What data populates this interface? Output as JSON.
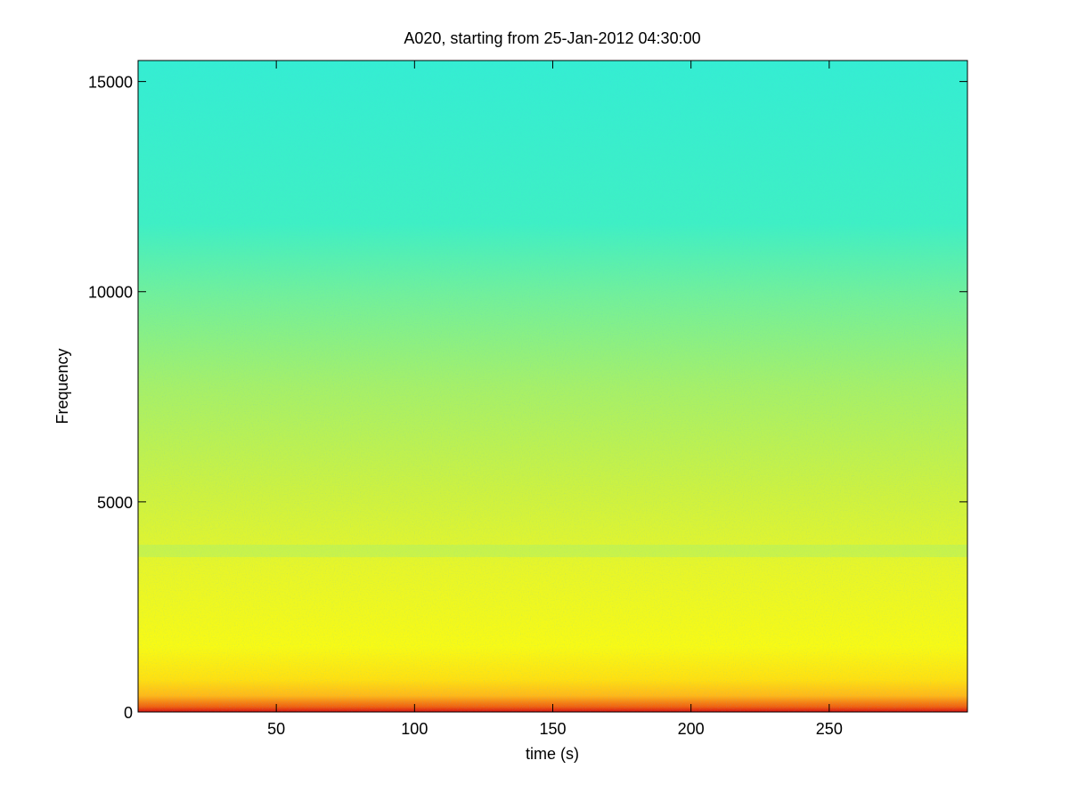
{
  "chart_data": {
    "type": "spectrogram",
    "title": "A020, starting from 25-Jan-2012 04:30:00",
    "x_label": "time (s)",
    "y_label": "Frequency",
    "xlim": [
      0,
      300
    ],
    "xticks": [
      50,
      100,
      150,
      200,
      250
    ],
    "ylim": [
      0,
      15500
    ],
    "yticks": [
      0,
      5000,
      10000,
      15000
    ]
  }
}
